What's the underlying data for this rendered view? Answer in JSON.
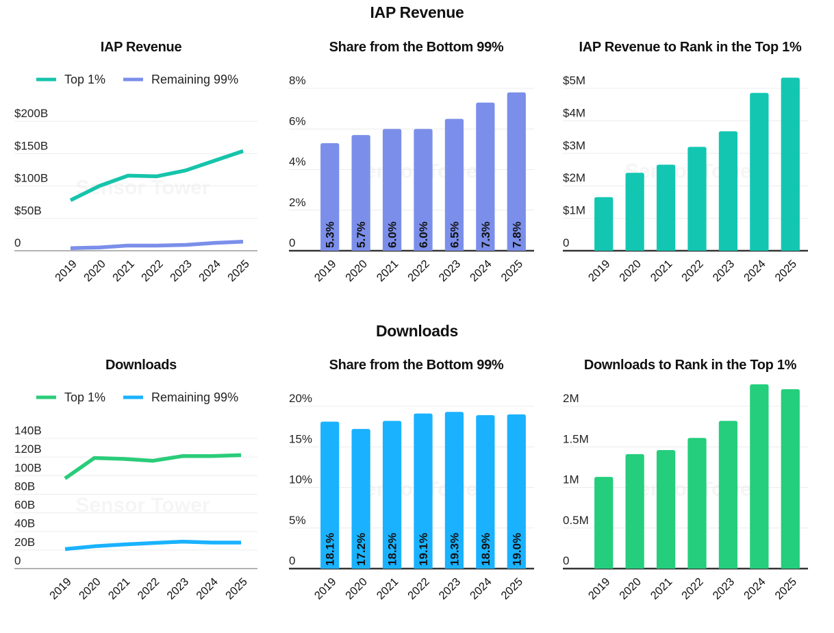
{
  "sections": {
    "revenue_title": "IAP Revenue",
    "downloads_title": "Downloads"
  },
  "watermark": "Sensor Tower",
  "colors": {
    "iap_top": "#16C4AA",
    "iap_rest": "#7B8FEA",
    "iap_rank": "#13C6B2",
    "dl_top": "#2ACC7A",
    "dl_rest": "#1AB2FF",
    "dl_rank": "#24CE7C"
  },
  "chart_data": [
    {
      "id": "iap_revenue",
      "type": "line",
      "title": "IAP Revenue",
      "x": [
        "2019",
        "2020",
        "2021",
        "2022",
        "2023",
        "2024",
        "2025"
      ],
      "series": [
        {
          "name": "Top 1%",
          "color_key": "iap_top",
          "values": [
            78,
            100,
            116,
            115,
            124,
            139,
            154
          ]
        },
        {
          "name": "Remaining 99%",
          "color_key": "iap_rest",
          "values": [
            4,
            5,
            8,
            8,
            9,
            12,
            14
          ]
        }
      ],
      "yticks": [
        0,
        50,
        100,
        150,
        200
      ],
      "ytick_labels": [
        "0",
        "$50B",
        "$100B",
        "$150B",
        "$200B"
      ],
      "ylim": [
        0,
        200
      ],
      "ylabel": "",
      "xlabel": "",
      "legend": "top",
      "grid": true
    },
    {
      "id": "iap_share",
      "type": "bar",
      "title": "Share from the Bottom 99%",
      "categories": [
        "2019",
        "2020",
        "2021",
        "2022",
        "2023",
        "2024",
        "2025"
      ],
      "values": [
        5.3,
        5.7,
        6.0,
        6.0,
        6.5,
        7.3,
        7.8
      ],
      "data_labels": [
        "5.3%",
        "5.7%",
        "6.0%",
        "6.0%",
        "6.5%",
        "7.3%",
        "7.8%"
      ],
      "color_key": "iap_rest",
      "yticks": [
        0,
        2,
        4,
        6,
        8
      ],
      "ytick_labels": [
        "0",
        "2%",
        "4%",
        "6%",
        "8%"
      ],
      "ylim": [
        0,
        8
      ],
      "ylabel": "",
      "xlabel": "",
      "grid": true
    },
    {
      "id": "iap_rank",
      "type": "bar",
      "title": "IAP Revenue to Rank in the Top 1%",
      "categories": [
        "2019",
        "2020",
        "2021",
        "2022",
        "2023",
        "2024",
        "2025"
      ],
      "values": [
        1.65,
        2.4,
        2.65,
        3.2,
        3.68,
        4.86,
        5.33
      ],
      "color_key": "iap_rank",
      "yticks": [
        0,
        1,
        2,
        3,
        4,
        5
      ],
      "ytick_labels": [
        "0",
        "$1M",
        "$2M",
        "$3M",
        "$4M",
        "$5M"
      ],
      "ylim": [
        0,
        5.5
      ],
      "ylabel": "",
      "xlabel": "",
      "grid": true
    },
    {
      "id": "downloads",
      "type": "line",
      "title": "Downloads",
      "x": [
        "2019",
        "2020",
        "2021",
        "2022",
        "2023",
        "2024",
        "2025"
      ],
      "series": [
        {
          "name": "Top 1%",
          "color_key": "dl_top",
          "values": [
            97,
            119,
            118,
            116,
            121,
            121,
            122
          ]
        },
        {
          "name": "Remaining 99%",
          "color_key": "dl_rest",
          "values": [
            21,
            24,
            26,
            27.5,
            29,
            28,
            28
          ]
        }
      ],
      "yticks": [
        0,
        20,
        40,
        60,
        80,
        100,
        120,
        140
      ],
      "ytick_labels": [
        "0",
        "20B",
        "40B",
        "60B",
        "80B",
        "100B",
        "120B",
        "140B"
      ],
      "ylim": [
        0,
        140
      ],
      "ylabel": "",
      "xlabel": "",
      "legend": "top",
      "grid": true
    },
    {
      "id": "downloads_share",
      "type": "bar",
      "title": "Share from the Bottom 99%",
      "categories": [
        "2019",
        "2020",
        "2021",
        "2022",
        "2023",
        "2024",
        "2025"
      ],
      "values": [
        18.1,
        17.2,
        18.2,
        19.1,
        19.3,
        18.9,
        19.0
      ],
      "data_labels": [
        "18.1%",
        "17.2%",
        "18.2%",
        "19.1%",
        "19.3%",
        "18.9%",
        "19.0%"
      ],
      "color_key": "dl_rest",
      "yticks": [
        0,
        5,
        10,
        15,
        20
      ],
      "ytick_labels": [
        "0",
        "5%",
        "10%",
        "15%",
        "20%"
      ],
      "ylim": [
        0,
        20
      ],
      "ylabel": "",
      "xlabel": "",
      "grid": true
    },
    {
      "id": "downloads_rank",
      "type": "bar",
      "title": "Downloads to Rank in the Top 1%",
      "categories": [
        "2019",
        "2020",
        "2021",
        "2022",
        "2023",
        "2024",
        "2025"
      ],
      "values": [
        1.13,
        1.41,
        1.46,
        1.61,
        1.82,
        2.27,
        2.21
      ],
      "color_key": "dl_rank",
      "yticks": [
        0,
        0.5,
        1,
        1.5,
        2
      ],
      "ytick_labels": [
        "0",
        "0.5M",
        "1M",
        "1.5M",
        "2M"
      ],
      "ylim": [
        0,
        2.4
      ],
      "ylabel": "",
      "xlabel": "",
      "grid": true
    }
  ]
}
